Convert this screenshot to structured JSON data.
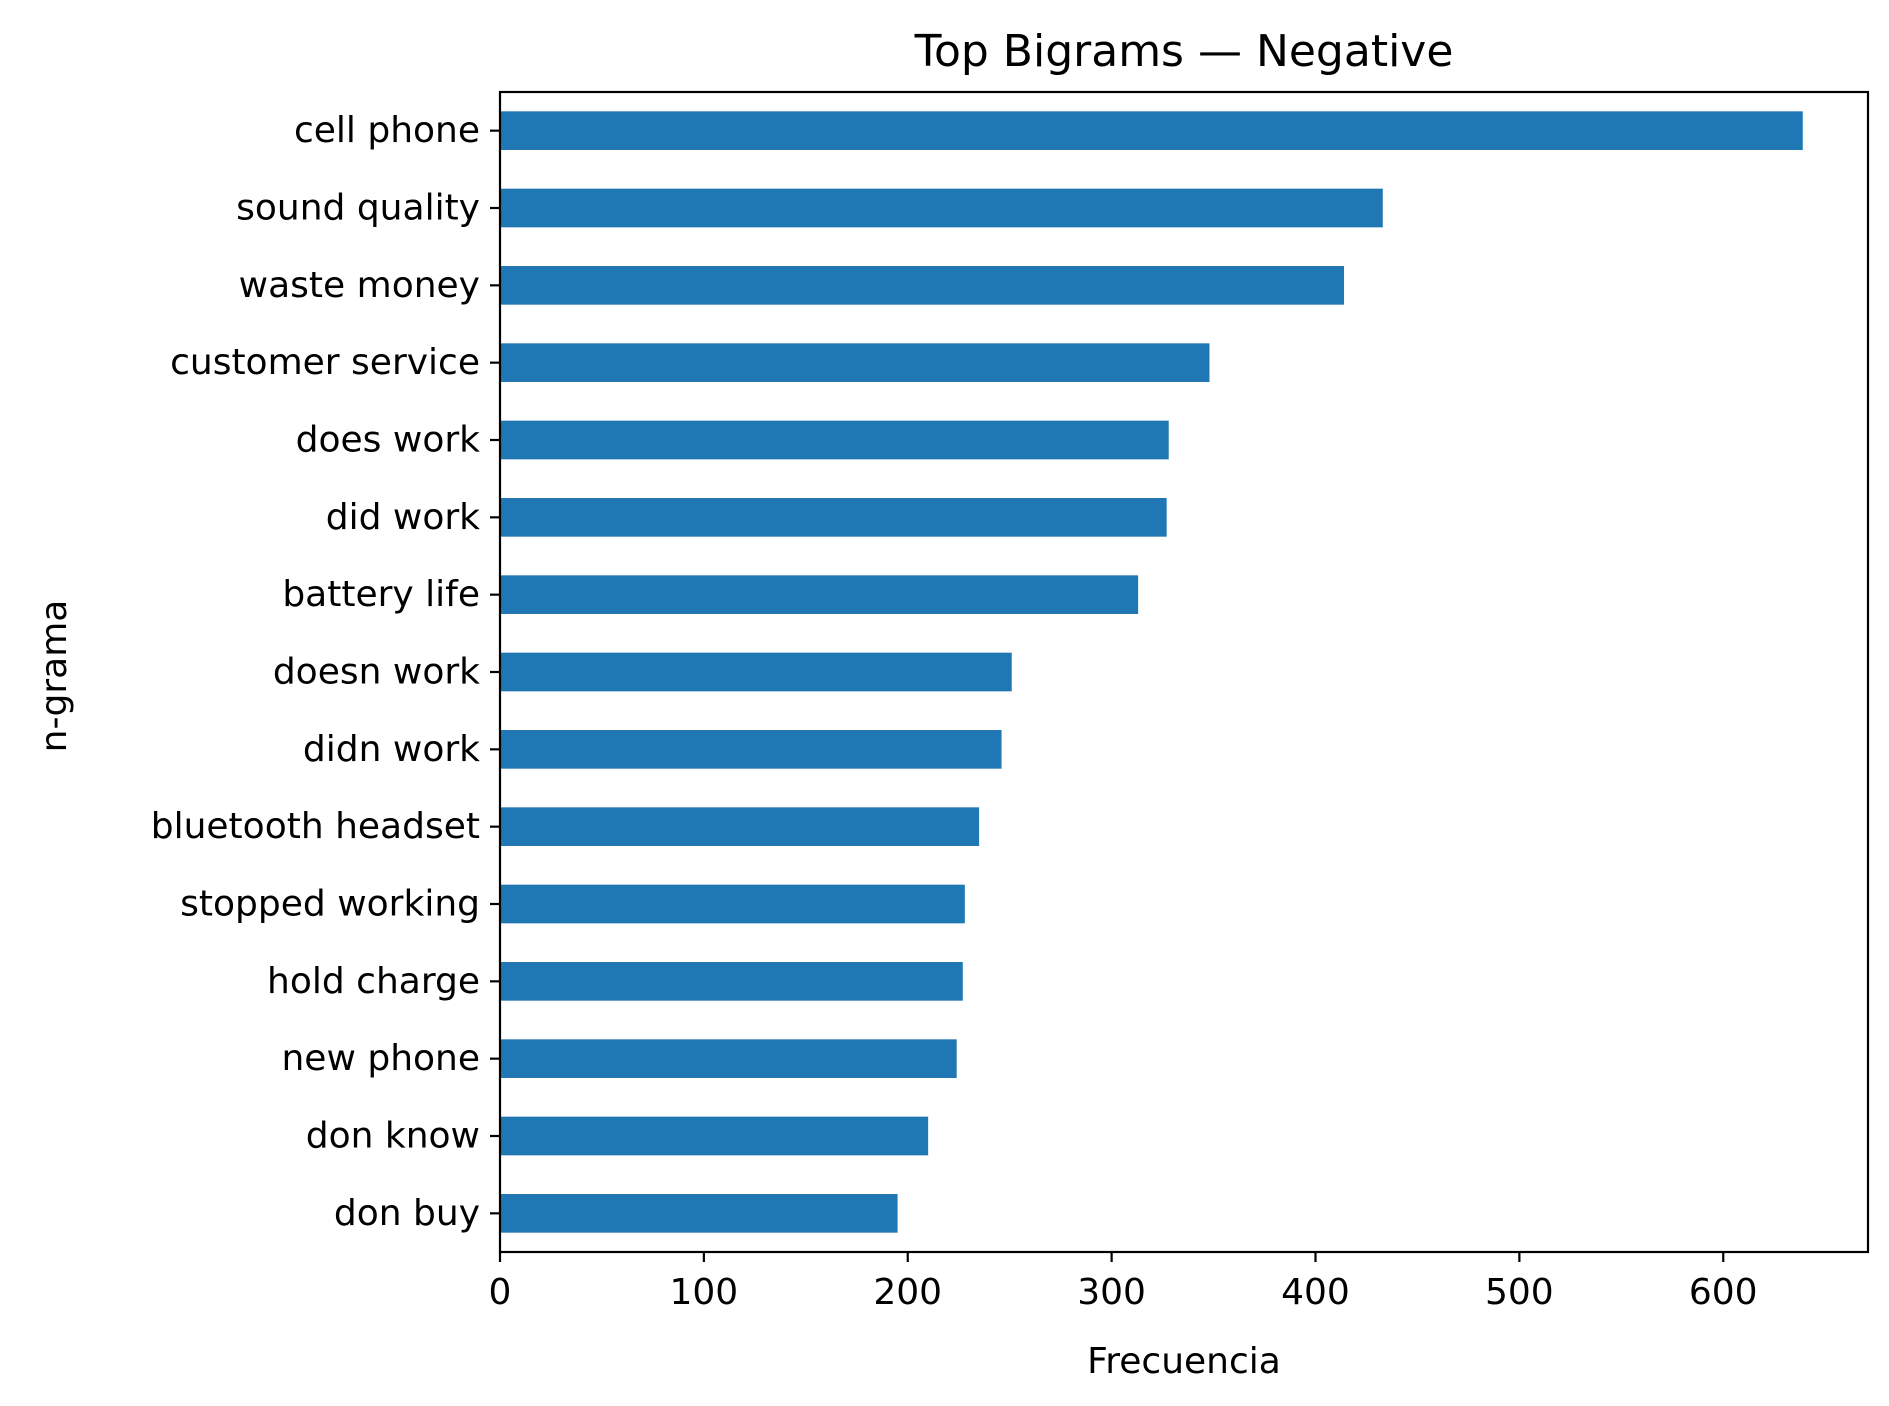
{
  "chart_data": {
    "type": "bar",
    "orientation": "horizontal",
    "title": "Top Bigrams — Negative",
    "xlabel": "Frecuencia",
    "ylabel": "n-grama",
    "categories": [
      "cell phone",
      "sound quality",
      "waste money",
      "customer service",
      "does work",
      "did work",
      "battery life",
      "doesn work",
      "didn work",
      "bluetooth headset",
      "stopped working",
      "hold charge",
      "new phone",
      "don know",
      "don buy"
    ],
    "values": [
      639,
      433,
      414,
      348,
      328,
      327,
      313,
      251,
      246,
      235,
      228,
      227,
      224,
      210,
      195
    ],
    "xlim": [
      0,
      671
    ],
    "xticks": [
      0,
      100,
      200,
      300,
      400,
      500,
      600
    ],
    "bar_color": "#1f77b4",
    "grid": false,
    "legend": "none"
  }
}
